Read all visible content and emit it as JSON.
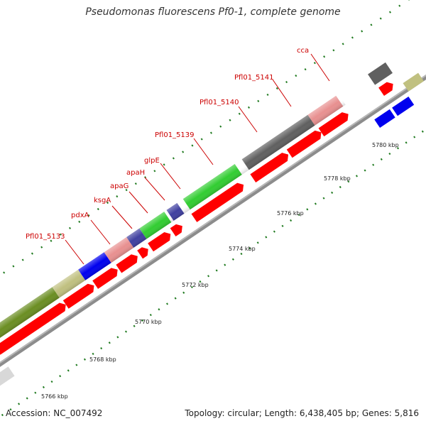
{
  "title": "Pseudomonas fluorescens Pf0-1, complete genome",
  "footer": {
    "accession": "Accession: NC_007492",
    "summary": "Topology: circular; Length: 6,438,405 bp; Genes: 5,816"
  },
  "scale": {
    "ticks": [
      {
        "value": 5766,
        "label": "5766 kbp"
      },
      {
        "value": 5768,
        "label": "5768 kbp"
      },
      {
        "value": 5770,
        "label": "5770 kbp"
      },
      {
        "value": 5772,
        "label": "5772 kbp"
      },
      {
        "value": 5774,
        "label": "5774 kbp"
      },
      {
        "value": 5776,
        "label": "5776 kbp"
      },
      {
        "value": 5778,
        "label": "5778 kbp"
      },
      {
        "value": 5780,
        "label": "5780 kbp"
      }
    ]
  },
  "gene_labels": [
    {
      "name": "Pfl01_5133",
      "color": "#cc0000"
    },
    {
      "name": "pdxA",
      "color": "#cc0000"
    },
    {
      "name": "ksgA",
      "color": "#cc0000"
    },
    {
      "name": "apaG",
      "color": "#cc0000"
    },
    {
      "name": "apaH",
      "color": "#cc0000"
    },
    {
      "name": "glpE",
      "color": "#cc0000"
    },
    {
      "name": "Pfl01_5139",
      "color": "#cc0000"
    },
    {
      "name": "Pfl01_5140",
      "color": "#cc0000"
    },
    {
      "name": "Pfl01_5141",
      "color": "#cc0000"
    },
    {
      "name": "cca",
      "color": "#cc0000"
    }
  ],
  "colors": {
    "backbone": "#8c8c8c",
    "cds": "#ff0000",
    "tick": "#1f7a1f",
    "label_line": "#cc0000"
  }
}
